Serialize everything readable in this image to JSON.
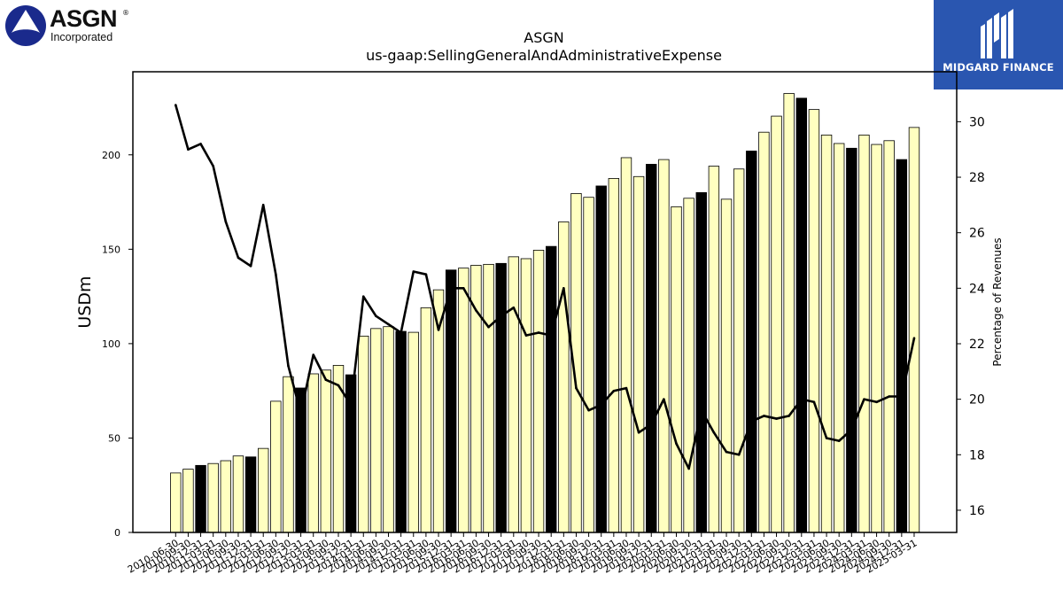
{
  "branding": {
    "asgn_logo": {
      "name": "ASGN",
      "sub": "Incorporated",
      "registered": "®"
    },
    "midgard_logo": {
      "name": "MIDGARD FINANCE",
      "color": "#2a56b0"
    }
  },
  "chart_data": {
    "type": "bar",
    "title": "ASGN",
    "subtitle": "us-gaap:SellingGeneralAndAdministrativeExpense",
    "ylabel": "USDm",
    "y2label": "Percentage of Revenues",
    "ylim": [
      0,
      244
    ],
    "y2lim": [
      15.2,
      31.8
    ],
    "yticks": [
      0,
      50,
      100,
      150,
      200
    ],
    "y2ticks": [
      16,
      18,
      20,
      22,
      24,
      26,
      28,
      30
    ],
    "grid": false,
    "bar_color": "#ffffc0",
    "highlight_color": "#000000",
    "line_color": "#000000",
    "categories": [
      "2010-06-30",
      "2010-09-30",
      "2010-12-31",
      "2011-03-31",
      "2011-06-30",
      "2011-09-30",
      "2011-12-31",
      "2012-03-31",
      "2012-06-30",
      "2012-09-30",
      "2012-12-31",
      "2013-03-31",
      "2013-06-30",
      "2013-09-30",
      "2013-12-31",
      "2014-03-31",
      "2014-06-30",
      "2014-09-30",
      "2014-12-31",
      "2015-03-31",
      "2015-06-30",
      "2015-09-30",
      "2015-12-31",
      "2016-03-31",
      "2016-06-30",
      "2016-09-30",
      "2016-12-31",
      "2017-03-31",
      "2017-06-30",
      "2017-09-30",
      "2017-12-31",
      "2018-03-31",
      "2018-06-30",
      "2018-09-30",
      "2018-12-31",
      "2019-03-31",
      "2019-06-30",
      "2019-09-30",
      "2019-12-31",
      "2020-03-31",
      "2020-06-30",
      "2020-09-30",
      "2020-12-31",
      "2021-03-31",
      "2021-06-30",
      "2021-09-30",
      "2021-12-31",
      "2022-03-31",
      "2022-06-30",
      "2022-09-30",
      "2022-12-31",
      "2023-03-31",
      "2023-06-30",
      "2023-09-30",
      "2023-12-31",
      "2024-03-31",
      "2024-06-30",
      "2024-09-30",
      "2024-12-31",
      "2025-03-31"
    ],
    "values": [
      31.5,
      33.5,
      35.5,
      36.5,
      38,
      40.5,
      40,
      44.5,
      69.5,
      82.5,
      76.5,
      84,
      86,
      88.5,
      83.5,
      104,
      108,
      109,
      106.5,
      106,
      119,
      128.5,
      139,
      140,
      141.5,
      142,
      142.5,
      146,
      145,
      149.5,
      151.5,
      164.5,
      179.5,
      177.5,
      183.5,
      187.5,
      198.5,
      188.5,
      195,
      197.5,
      172.5,
      177,
      180,
      194,
      176.5,
      192.5,
      202,
      212,
      220.5,
      232.5,
      230,
      224,
      210.5,
      206,
      203.5,
      210.5,
      205.5,
      207.5,
      197.5,
      214.5
    ],
    "highlight": [
      false,
      false,
      true,
      false,
      false,
      false,
      true,
      false,
      false,
      false,
      true,
      false,
      false,
      false,
      true,
      false,
      false,
      false,
      true,
      false,
      false,
      false,
      true,
      false,
      false,
      false,
      true,
      false,
      false,
      false,
      true,
      false,
      false,
      false,
      true,
      false,
      false,
      false,
      true,
      false,
      false,
      false,
      true,
      false,
      false,
      false,
      true,
      false,
      false,
      false,
      true,
      false,
      false,
      false,
      true,
      false,
      false,
      false,
      true,
      false
    ],
    "pct_of_revenue": [
      30.6,
      29.0,
      29.2,
      28.4,
      26.4,
      25.1,
      24.8,
      27.0,
      24.5,
      21.2,
      19.5,
      21.6,
      20.7,
      20.5,
      19.8,
      23.7,
      23.0,
      22.7,
      22.4,
      24.6,
      24.5,
      22.5,
      24.0,
      24.0,
      23.2,
      22.6,
      23.0,
      23.3,
      22.3,
      22.4,
      22.3,
      24.0,
      20.4,
      19.6,
      19.8,
      20.3,
      20.4,
      18.8,
      19.1,
      20.0,
      18.4,
      17.5,
      19.6,
      18.8,
      18.1,
      18.0,
      19.2,
      19.4,
      19.3,
      19.4,
      20.0,
      19.9,
      18.6,
      18.5,
      18.9,
      20.0,
      19.9,
      20.1,
      20.1,
      22.2
    ]
  }
}
